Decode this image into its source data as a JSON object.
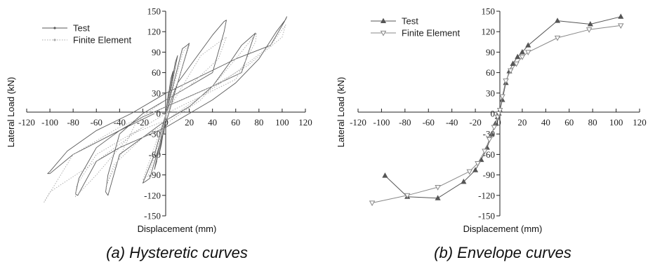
{
  "chart_data": [
    {
      "type": "line",
      "caption": "(a) Hysteretic curves",
      "xlabel": "Displacement (mm)",
      "ylabel": "Lateral Load (kN)",
      "xlim": [
        -120,
        120
      ],
      "ylim": [
        -150,
        150
      ],
      "x_ticks": [
        -120,
        -100,
        -80,
        -60,
        -40,
        -20,
        0,
        20,
        40,
        60,
        80,
        100,
        120
      ],
      "y_ticks": [
        -150,
        -120,
        -90,
        -60,
        -30,
        0,
        30,
        60,
        90,
        120,
        150
      ],
      "legend": {
        "position": "top-left"
      },
      "series": [
        {
          "name": "Test",
          "color": "#5a5a5a",
          "style": "solid",
          "x": [
            0,
            2,
            -2,
            0,
            4,
            6,
            -4,
            -6,
            0,
            8,
            10,
            -8,
            -10,
            0,
            14,
            18,
            20,
            -14,
            -18,
            -20,
            -10,
            0,
            10,
            25,
            40,
            50,
            52,
            50,
            40,
            20,
            0,
            -20,
            -40,
            -50,
            -52,
            -50,
            -40,
            -20,
            0,
            20,
            40,
            55,
            65,
            75,
            77,
            75,
            65,
            40,
            20,
            0,
            -20,
            -40,
            -60,
            -75,
            -78,
            -76,
            -60,
            -40,
            -20,
            0,
            20,
            40,
            60,
            80,
            95,
            103,
            104,
            102,
            90,
            60,
            30,
            0,
            -30,
            -60,
            -85,
            -100,
            -102,
            -100,
            -80,
            -40,
            -10
          ],
          "y": [
            0,
            30,
            -30,
            0,
            50,
            62,
            -45,
            -60,
            0,
            75,
            85,
            -70,
            -82,
            0,
            95,
            100,
            103,
            -95,
            -100,
            -102,
            -60,
            0,
            45,
            80,
            115,
            135,
            137,
            120,
            60,
            40,
            20,
            0,
            -30,
            -90,
            -115,
            -120,
            -60,
            -35,
            -10,
            10,
            40,
            75,
            100,
            115,
            118,
            110,
            60,
            40,
            25,
            10,
            -5,
            -25,
            -50,
            -95,
            -118,
            -120,
            -70,
            -50,
            -35,
            -20,
            0,
            20,
            45,
            80,
            120,
            138,
            142,
            135,
            100,
            80,
            55,
            30,
            0,
            -25,
            -55,
            -85,
            -88,
            -88,
            -60,
            -25,
            0
          ]
        },
        {
          "name": "Finite Element",
          "color": "#a8a8a8",
          "style": "dotted",
          "x": [
            0,
            3,
            -3,
            0,
            8,
            -8,
            0,
            15,
            20,
            -15,
            -20,
            0,
            30,
            50,
            52,
            45,
            20,
            0,
            -25,
            -50,
            -52,
            -45,
            -20,
            0,
            30,
            60,
            78,
            77,
            60,
            30,
            0,
            -30,
            -60,
            -78,
            -77,
            -60,
            -30,
            0,
            30,
            60,
            90,
            103,
            100,
            70,
            40,
            0,
            -40,
            -80,
            -105,
            -100,
            -60,
            -20
          ],
          "y": [
            0,
            32,
            -32,
            0,
            70,
            -70,
            0,
            92,
            100,
            -90,
            -98,
            0,
            85,
            110,
            112,
            80,
            40,
            20,
            -10,
            -100,
            -110,
            -75,
            -35,
            -15,
            20,
            80,
            118,
            105,
            50,
            25,
            0,
            -30,
            -90,
            -122,
            -105,
            -60,
            -30,
            -10,
            25,
            60,
            100,
            130,
            112,
            70,
            40,
            10,
            -20,
            -60,
            -130,
            -115,
            -70,
            -20
          ]
        }
      ]
    },
    {
      "type": "line",
      "caption": "(b) Envelope curves",
      "xlabel": "Displacement (mm)",
      "ylabel": "Lateral Load (kN)",
      "xlim": [
        -120,
        120
      ],
      "ylim": [
        -150,
        150
      ],
      "x_ticks": [
        -120,
        -100,
        -80,
        -60,
        -40,
        -20,
        0,
        20,
        40,
        60,
        80,
        100,
        120
      ],
      "y_ticks": [
        -150,
        -120,
        -90,
        -60,
        -30,
        0,
        30,
        60,
        90,
        120,
        150
      ],
      "legend": {
        "position": "top-left"
      },
      "series": [
        {
          "name": "Test",
          "color": "#555555",
          "marker": "triangle-up-filled",
          "x": [
            -97,
            -78,
            -52,
            -30,
            -20,
            -15,
            -10,
            -6,
            -3,
            -1,
            0,
            1,
            3,
            6,
            9,
            12,
            16,
            20,
            25,
            50,
            78,
            104
          ],
          "y": [
            -91,
            -122,
            -124,
            -100,
            -83,
            -68,
            -50,
            -30,
            -15,
            -5,
            0,
            5,
            20,
            45,
            62,
            73,
            83,
            90,
            100,
            136,
            131,
            142
          ]
        },
        {
          "name": "Finite Element",
          "color": "#888888",
          "marker": "triangle-down-open",
          "x": [
            -108,
            -78,
            -52,
            -25,
            -18,
            -12,
            -8,
            -4,
            -1,
            0,
            1,
            3,
            6,
            10,
            15,
            20,
            25,
            50,
            77,
            104
          ],
          "y": [
            -131,
            -120,
            -108,
            -85,
            -73,
            -55,
            -38,
            -20,
            -5,
            0,
            5,
            25,
            48,
            63,
            73,
            83,
            90,
            111,
            123,
            129
          ]
        }
      ]
    }
  ]
}
